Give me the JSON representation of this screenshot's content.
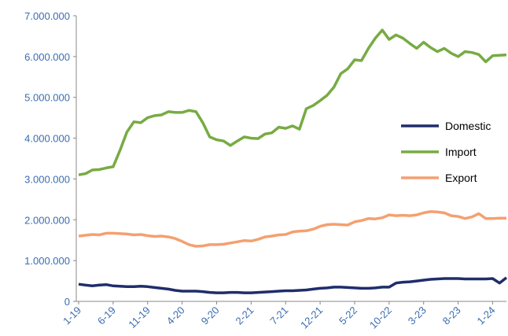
{
  "chart_data": {
    "type": "line",
    "categories": [
      "1-19",
      null,
      null,
      null,
      null,
      "6-19",
      null,
      null,
      null,
      null,
      "11-19",
      null,
      null,
      null,
      null,
      "4-20",
      null,
      null,
      null,
      null,
      "9-20",
      null,
      null,
      null,
      null,
      "2-21",
      null,
      null,
      null,
      null,
      "7-21",
      null,
      null,
      null,
      null,
      "12-21",
      null,
      null,
      null,
      null,
      "5-22",
      null,
      null,
      null,
      null,
      "10-22",
      null,
      null,
      null,
      null,
      "3-23",
      null,
      null,
      null,
      null,
      "8-23",
      null,
      null,
      null,
      null,
      "1-24",
      null,
      null
    ],
    "series": [
      {
        "name": "Domestic",
        "color": "#1f2d6b",
        "values": [
          420000,
          400000,
          380000,
          400000,
          410000,
          380000,
          370000,
          360000,
          360000,
          370000,
          360000,
          340000,
          320000,
          300000,
          270000,
          250000,
          250000,
          250000,
          240000,
          220000,
          210000,
          210000,
          220000,
          220000,
          210000,
          210000,
          220000,
          230000,
          240000,
          250000,
          260000,
          260000,
          270000,
          280000,
          300000,
          320000,
          330000,
          350000,
          350000,
          340000,
          330000,
          320000,
          320000,
          330000,
          350000,
          350000,
          450000,
          470000,
          480000,
          500000,
          520000,
          540000,
          550000,
          560000,
          560000,
          560000,
          550000,
          550000,
          550000,
          550000,
          560000,
          450000,
          580000
        ]
      },
      {
        "name": "Import",
        "color": "#77ab43",
        "values": [
          3100000,
          3130000,
          3220000,
          3230000,
          3270000,
          3300000,
          3700000,
          4150000,
          4400000,
          4380000,
          4500000,
          4550000,
          4570000,
          4650000,
          4630000,
          4630000,
          4680000,
          4650000,
          4380000,
          4030000,
          3960000,
          3930000,
          3820000,
          3930000,
          4030000,
          4000000,
          3990000,
          4100000,
          4130000,
          4270000,
          4240000,
          4300000,
          4220000,
          4720000,
          4800000,
          4920000,
          5050000,
          5250000,
          5580000,
          5700000,
          5920000,
          5900000,
          6200000,
          6450000,
          6650000,
          6420000,
          6530000,
          6450000,
          6320000,
          6200000,
          6350000,
          6220000,
          6120000,
          6200000,
          6080000,
          6000000,
          6120000,
          6100000,
          6050000,
          5870000,
          6020000,
          6030000,
          6040000
        ]
      },
      {
        "name": "Export",
        "color": "#f4a070",
        "values": [
          1600000,
          1620000,
          1640000,
          1630000,
          1670000,
          1670000,
          1660000,
          1650000,
          1630000,
          1640000,
          1610000,
          1590000,
          1600000,
          1580000,
          1540000,
          1470000,
          1390000,
          1350000,
          1360000,
          1390000,
          1390000,
          1400000,
          1430000,
          1460000,
          1490000,
          1480000,
          1520000,
          1580000,
          1600000,
          1630000,
          1640000,
          1700000,
          1720000,
          1730000,
          1770000,
          1840000,
          1880000,
          1890000,
          1880000,
          1870000,
          1950000,
          1980000,
          2030000,
          2020000,
          2050000,
          2120000,
          2100000,
          2110000,
          2100000,
          2120000,
          2170000,
          2200000,
          2190000,
          2170000,
          2100000,
          2080000,
          2030000,
          2070000,
          2150000,
          2030000,
          2030000,
          2040000,
          2040000
        ]
      }
    ],
    "ylim": [
      0,
      7000000
    ],
    "yticks": [
      {
        "value": 0,
        "label": "0"
      },
      {
        "value": 1000000,
        "label": "1.000.000"
      },
      {
        "value": 2000000,
        "label": "2.000.000"
      },
      {
        "value": 3000000,
        "label": "3.000.000"
      },
      {
        "value": 4000000,
        "label": "4.000.000"
      },
      {
        "value": 5000000,
        "label": "5.000.000"
      },
      {
        "value": 6000000,
        "label": "6.000.000"
      },
      {
        "value": 7000000,
        "label": "7.000.000"
      }
    ],
    "grid": false
  }
}
